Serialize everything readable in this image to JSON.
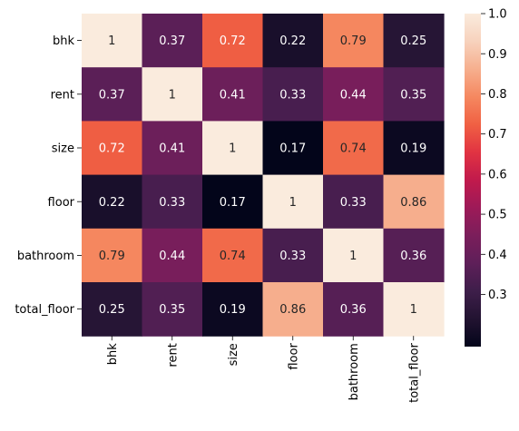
{
  "chart_data": {
    "type": "heatmap",
    "title": "",
    "row_labels": [
      "bhk",
      "rent",
      "size",
      "floor",
      "bathroom",
      "total_floor"
    ],
    "col_labels": [
      "bhk",
      "rent",
      "size",
      "floor",
      "bathroom",
      "total_floor"
    ],
    "values": [
      [
        1,
        0.37,
        0.72,
        0.22,
        0.79,
        0.25
      ],
      [
        0.37,
        1,
        0.41,
        0.33,
        0.44,
        0.35
      ],
      [
        0.72,
        0.41,
        1,
        0.17,
        0.74,
        0.19
      ],
      [
        0.22,
        0.33,
        0.17,
        1,
        0.33,
        0.86
      ],
      [
        0.79,
        0.44,
        0.74,
        0.33,
        1,
        0.36
      ],
      [
        0.25,
        0.35,
        0.19,
        0.86,
        0.36,
        1
      ]
    ],
    "cell_labels": [
      [
        "1",
        "0.37",
        "0.72",
        "0.22",
        "0.79",
        "0.25"
      ],
      [
        "0.37",
        "1",
        "0.41",
        "0.33",
        "0.44",
        "0.35"
      ],
      [
        "0.72",
        "0.41",
        "1",
        "0.17",
        "0.74",
        "0.19"
      ],
      [
        "0.22",
        "0.33",
        "0.17",
        "1",
        "0.33",
        "0.86"
      ],
      [
        "0.79",
        "0.44",
        "0.74",
        "0.33",
        "1",
        "0.36"
      ],
      [
        "0.25",
        "0.35",
        "0.19",
        "0.86",
        "0.36",
        "1"
      ]
    ],
    "colorbar": {
      "range": [
        0.17,
        1.0
      ],
      "ticks": [
        0.3,
        0.4,
        0.5,
        0.6,
        0.7,
        0.8,
        0.9,
        1.0
      ],
      "tick_labels": [
        "0.3",
        "0.4",
        "0.5",
        "0.6",
        "0.7",
        "0.8",
        "0.9",
        "1.0"
      ],
      "colormap": "rocket"
    },
    "colormap_stops": [
      "#03051a",
      "#221331",
      "#3e1e4a",
      "#5e1f59",
      "#7b1e5b",
      "#9d1a58",
      "#c11a4c",
      "#e13342",
      "#f06043",
      "#f58860",
      "#f6af8e",
      "#f7d2bd",
      "#faebdd"
    ],
    "dark_text_color": "#262626",
    "light_text_color": "#ffffff"
  }
}
